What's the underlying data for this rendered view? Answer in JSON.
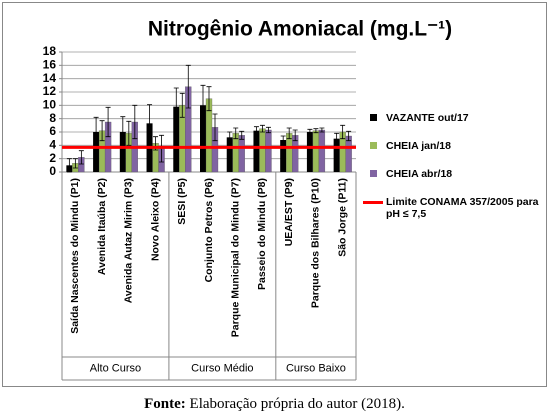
{
  "chart_data": {
    "type": "bar",
    "title": "Nitrogênio Amoniacal (mg.L⁻¹)",
    "categories": [
      "Saída Nascentes do Mindu (P1)",
      "Avenida Itaúba (P2)",
      "Avenida Autaz Mirim (P3)",
      "Novo Aleixo (P4)",
      "SESI (P5)",
      "Conjunto Petros (P6)",
      "Parque Municipal do Mindu (P7)",
      "Passeio do Mindu (P8)",
      "UEA/EST (P9)",
      "Parque dos Bilhares (P10)",
      "São Jorge (P11)"
    ],
    "groups": [
      {
        "label": "Alto Curso",
        "count": 4
      },
      {
        "label": "Curso Médio",
        "count": 4
      },
      {
        "label": "Curso Baixo",
        "count": 3
      }
    ],
    "series": [
      {
        "name": "VAZANTE out/17",
        "color": "#000000",
        "values": [
          1.0,
          6.0,
          6.0,
          7.3,
          9.8,
          10.0,
          5.2,
          6.2,
          4.8,
          6.0,
          5.0
        ],
        "errors": [
          1.0,
          2.2,
          2.3,
          2.8,
          2.8,
          3.0,
          0.8,
          0.6,
          0.6,
          0.4,
          0.8
        ]
      },
      {
        "name": "CHEIA jan/18",
        "color": "#9bbb59",
        "values": [
          1.3,
          6.2,
          5.8,
          4.3,
          10.0,
          11.0,
          5.8,
          6.5,
          5.8,
          6.2,
          6.0
        ],
        "errors": [
          0.7,
          1.5,
          1.8,
          1.0,
          1.8,
          1.8,
          0.8,
          0.5,
          0.8,
          0.3,
          1.0
        ]
      },
      {
        "name": "CHEIA abr/18",
        "color": "#8064a2",
        "values": [
          2.2,
          7.5,
          7.5,
          3.5,
          12.8,
          6.7,
          5.5,
          6.3,
          5.5,
          6.3,
          5.4
        ],
        "errors": [
          1.0,
          2.2,
          2.5,
          2.0,
          3.2,
          2.0,
          0.6,
          0.4,
          0.8,
          0.3,
          0.7
        ]
      }
    ],
    "limit": {
      "name": "Limite CONAMA 357/2005 para pH ≤ 7,5",
      "value": 3.7,
      "color": "#ff0000"
    },
    "ylim": [
      0,
      18
    ],
    "yticks": [
      0,
      2,
      4,
      6,
      8,
      10,
      12,
      14,
      16,
      18
    ],
    "grid": true
  },
  "source_label": "Fonte:",
  "source_text": "Elaboração própria do autor (2018)."
}
